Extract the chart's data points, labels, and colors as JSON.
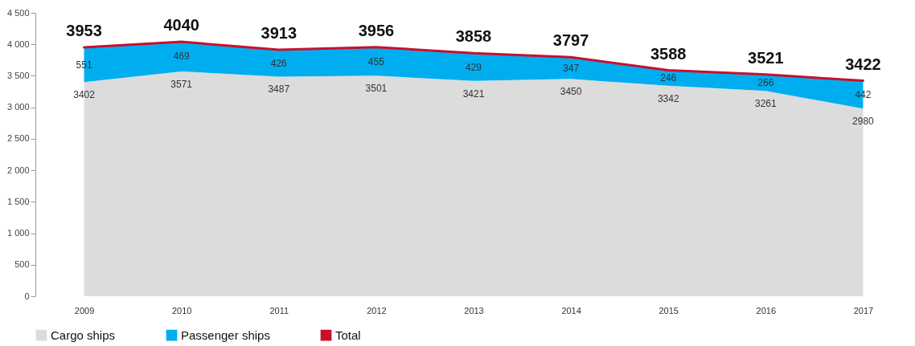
{
  "chart_data": {
    "type": "area",
    "stacked": true,
    "categories": [
      "2009",
      "2010",
      "2011",
      "2012",
      "2013",
      "2014",
      "2015",
      "2016",
      "2017"
    ],
    "series": [
      {
        "name": "Cargo ships",
        "color": "#dcdcdc",
        "values": [
          3402,
          3571,
          3487,
          3501,
          3421,
          3450,
          3342,
          3261,
          2980
        ]
      },
      {
        "name": "Passenger ships",
        "color": "#00aeef",
        "values": [
          551,
          469,
          426,
          455,
          429,
          347,
          246,
          266,
          442
        ]
      },
      {
        "name": "Total",
        "type": "line",
        "color": "#c8102e",
        "values": [
          3953,
          4040,
          3913,
          3956,
          3858,
          3797,
          3588,
          3521,
          3422
        ]
      }
    ],
    "data_labels": true,
    "ylim": [
      0,
      4500
    ],
    "yticks": [
      {
        "value": 0,
        "label": "0"
      },
      {
        "value": 500,
        "label": "500"
      },
      {
        "value": 1000,
        "label": "1 000"
      },
      {
        "value": 1500,
        "label": "1 500"
      },
      {
        "value": 2000,
        "label": "2 000"
      },
      {
        "value": 2500,
        "label": "2 500"
      },
      {
        "value": 3000,
        "label": "3 000"
      },
      {
        "value": 3500,
        "label": "3 500"
      },
      {
        "value": 4000,
        "label": "4 000"
      },
      {
        "value": 4500,
        "label": "4 500"
      }
    ],
    "grid": false,
    "legend": "bottom"
  }
}
